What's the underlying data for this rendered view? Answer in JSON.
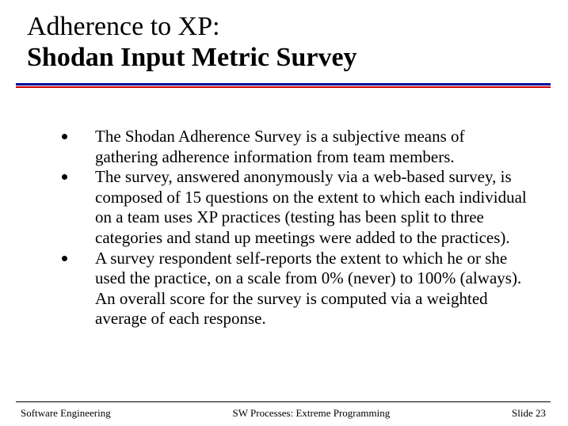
{
  "title": {
    "line1": "Adherence to XP:",
    "line2": "Shodan Input Metric Survey"
  },
  "bullets": [
    "The Shodan Adherence Survey is a subjective means of gathering adherence information from team members.",
    "The survey, answered anonymously via a web-based survey, is composed of 15 questions on the extent to which each individual on a team uses XP practices (testing has been split to three categories and stand up meetings were added to the practices).",
    "A survey respondent self-reports the extent to which he or she used the practice, on a scale from 0% (never) to 100% (always). An overall score for the survey is computed via a weighted average of each response."
  ],
  "footer": {
    "left": "Software Engineering",
    "center": "SW Processes: Extreme Programming",
    "right": "Slide 23"
  },
  "colors": {
    "rule_top": "#000099",
    "rule_bottom": "#cc0000",
    "text": "#000000",
    "background": "#ffffff"
  }
}
